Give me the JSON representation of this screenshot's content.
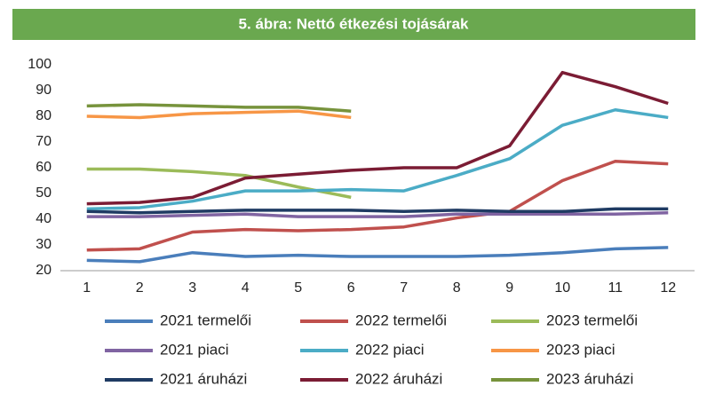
{
  "chart_data": {
    "type": "line",
    "title": "5. ábra: Nettó étkezési tojásárak",
    "categories": [
      "1",
      "2",
      "3",
      "4",
      "5",
      "6",
      "7",
      "8",
      "9",
      "10",
      "11",
      "12"
    ],
    "ylim": [
      20,
      100
    ],
    "yticks": [
      20,
      30,
      40,
      50,
      60,
      70,
      80,
      90,
      100
    ],
    "grid": false,
    "legend": "bottom",
    "series": [
      {
        "name": "2021 termelői",
        "color": "#4a7ebb",
        "values": [
          24,
          23.5,
          27,
          25.5,
          26,
          25.5,
          25.5,
          25.5,
          26,
          27,
          28.5,
          29
        ]
      },
      {
        "name": "2022 termelői",
        "color": "#c0504d",
        "values": [
          28,
          28.5,
          35,
          36,
          35.5,
          36,
          37,
          40.5,
          43,
          55,
          62.5,
          61.5
        ]
      },
      {
        "name": "2023 termelői",
        "color": "#9bbb59",
        "values": [
          59.5,
          59.5,
          58.5,
          57,
          52.5,
          48.5,
          null,
          null,
          null,
          null,
          null,
          null
        ]
      },
      {
        "name": "2021 piaci",
        "color": "#8064a2",
        "values": [
          41,
          41,
          41.5,
          42,
          41,
          41,
          41,
          42,
          42,
          42,
          42,
          42.5
        ]
      },
      {
        "name": "2022 piaci",
        "color": "#4bacc6",
        "values": [
          44,
          44.5,
          47,
          51,
          51,
          51.5,
          51,
          57,
          63.5,
          76.5,
          82.5,
          79.5
        ]
      },
      {
        "name": "2023 piaci",
        "color": "#f79646",
        "values": [
          80,
          79.5,
          81,
          81.5,
          82,
          79.5,
          null,
          null,
          null,
          null,
          null,
          null
        ]
      },
      {
        "name": "2021 áruházi",
        "color": "#1f3b63",
        "values": [
          43,
          42.5,
          43,
          43.5,
          43.5,
          43.5,
          43,
          43.5,
          43,
          43,
          44,
          44
        ]
      },
      {
        "name": "2022 áruházi",
        "color": "#7b1c34",
        "values": [
          46,
          46.5,
          48.5,
          56,
          57.5,
          59,
          60,
          60,
          68.5,
          97,
          91.5,
          85
        ]
      },
      {
        "name": "2023 áruházi",
        "color": "#77933c",
        "values": [
          84,
          84.5,
          84,
          83.5,
          83.5,
          82,
          null,
          null,
          null,
          null,
          null,
          null
        ]
      }
    ]
  }
}
